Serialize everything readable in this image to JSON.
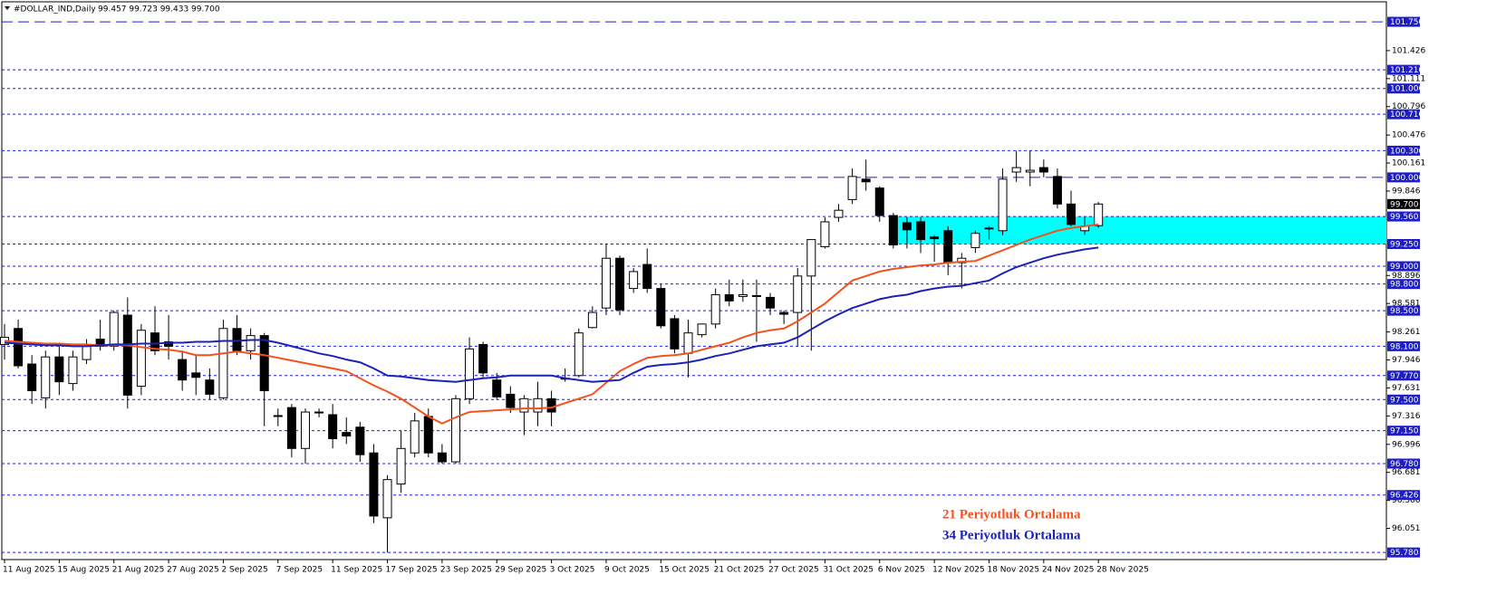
{
  "chart_data": {
    "type": "candlestick",
    "symbol": "#DOLLAR_IND,Daily",
    "ohlc_text": "99.457 99.723 99.433 99.700",
    "categories": [
      "11 Aug 2025",
      null,
      null,
      null,
      "15 Aug 2025",
      null,
      null,
      null,
      "21 Aug 2025",
      null,
      null,
      null,
      "27 Aug 2025",
      null,
      null,
      null,
      "2 Sep 2025",
      null,
      null,
      null,
      "7 Sep 2025",
      null,
      null,
      null,
      "11 Sep 2025",
      null,
      null,
      null,
      "17 Sep 2025",
      null,
      null,
      null,
      "23 Sep 2025",
      null,
      null,
      null,
      "29 Sep 2025",
      null,
      null,
      null,
      "3 Oct 2025",
      null,
      null,
      null,
      "9 Oct 2025",
      null,
      null,
      null,
      "15 Oct 2025",
      null,
      null,
      null,
      "21 Oct 2025",
      null,
      null,
      null,
      "27 Oct 2025",
      null,
      null,
      null,
      "31 Oct 2025",
      null,
      null,
      null,
      "6 Nov 2025",
      null,
      null,
      null,
      "12 Nov 2025",
      null,
      null,
      null,
      "18 Nov 2025",
      null,
      null,
      null,
      "24 Nov 2025",
      null,
      null,
      null,
      "28 Nov 2025"
    ],
    "open": [
      98.12,
      98.3,
      97.9,
      97.52,
      97.98,
      97.68,
      97.95,
      98.18,
      98.1,
      98.45,
      97.65,
      98.25,
      98.15,
      97.95,
      97.8,
      97.72,
      97.52,
      98.3,
      98.05,
      98.22,
      97.32,
      97.41,
      96.95,
      97.36,
      97.33,
      97.13,
      97.19,
      96.9,
      96.17,
      96.55,
      96.9,
      97.31,
      96.9,
      96.8,
      97.51,
      98.12,
      97.72,
      97.56,
      97.36,
      97.36,
      97.51,
      97.74,
      97.77,
      98.31,
      98.53,
      99.09,
      98.75,
      99.02,
      98.75,
      98.41,
      98.02,
      98.23,
      98.35,
      98.68,
      98.66,
      98.67,
      98.65,
      98.48,
      98.48,
      98.89,
      99.22,
      99.55,
      99.75,
      99.98,
      99.88,
      99.57,
      99.49,
      99.5,
      99.33,
      99.4,
      99.04,
      99.21,
      99.43,
      99.4,
      100.06,
      100.06,
      100.11,
      100.01,
      99.7,
      99.4,
      99.457
    ],
    "high": [
      98.35,
      98.4,
      98.0,
      98.05,
      98.1,
      98.05,
      98.18,
      98.4,
      98.5,
      98.65,
      98.35,
      98.55,
      98.45,
      98.05,
      98.0,
      97.85,
      98.4,
      98.45,
      98.3,
      98.25,
      97.4,
      97.45,
      97.4,
      97.4,
      97.45,
      97.3,
      97.25,
      97.0,
      96.65,
      97.15,
      97.35,
      97.4,
      97.0,
      97.55,
      98.2,
      98.15,
      97.8,
      97.65,
      97.55,
      97.7,
      97.6,
      97.85,
      98.3,
      98.55,
      99.25,
      99.12,
      98.98,
      99.2,
      98.8,
      98.45,
      98.4,
      98.35,
      98.75,
      98.85,
      98.85,
      98.85,
      98.7,
      98.5,
      98.98,
      99.3,
      99.55,
      99.7,
      100.1,
      100.2,
      99.9,
      99.6,
      99.55,
      99.55,
      99.35,
      99.45,
      99.15,
      99.4,
      99.45,
      100.1,
      100.3,
      100.3,
      100.2,
      100.1,
      99.85,
      99.55,
      99.723
    ],
    "low": [
      97.95,
      97.85,
      97.45,
      97.4,
      97.55,
      97.6,
      97.9,
      98.05,
      98.05,
      97.4,
      97.55,
      98.0,
      97.95,
      97.6,
      97.55,
      97.5,
      97.5,
      98.0,
      97.95,
      97.2,
      97.2,
      96.85,
      96.78,
      97.3,
      96.95,
      97.0,
      96.8,
      96.11,
      95.78,
      96.45,
      96.85,
      96.85,
      96.78,
      96.78,
      97.45,
      97.75,
      97.5,
      97.35,
      97.1,
      97.2,
      97.2,
      97.7,
      97.75,
      98.3,
      98.45,
      98.45,
      98.7,
      98.7,
      98.3,
      98.02,
      97.75,
      98.2,
      98.3,
      98.55,
      98.6,
      98.15,
      98.45,
      98.35,
      98.1,
      98.05,
      99.2,
      99.5,
      99.7,
      99.85,
      99.5,
      99.2,
      99.2,
      99.15,
      99.05,
      98.9,
      98.75,
      99.15,
      99.3,
      99.35,
      99.95,
      99.9,
      100.0,
      99.65,
      99.45,
      99.35,
      99.433
    ],
    "close": [
      98.2,
      97.88,
      97.6,
      97.98,
      97.7,
      97.98,
      98.1,
      98.1,
      98.48,
      97.55,
      98.28,
      98.05,
      98.1,
      97.72,
      97.75,
      97.56,
      98.3,
      98.05,
      98.22,
      97.6,
      97.31,
      96.95,
      97.36,
      97.35,
      97.06,
      97.09,
      96.88,
      96.19,
      96.6,
      96.95,
      97.26,
      96.9,
      96.8,
      97.51,
      98.07,
      97.8,
      97.53,
      97.41,
      97.51,
      97.51,
      97.36,
      97.74,
      98.25,
      98.48,
      99.09,
      98.51,
      98.94,
      98.75,
      98.33,
      98.07,
      98.25,
      98.35,
      98.68,
      98.61,
      98.68,
      98.66,
      98.53,
      98.46,
      98.89,
      99.3,
      99.5,
      99.63,
      100.01,
      99.95,
      99.57,
      99.24,
      99.41,
      99.3,
      99.31,
      99.04,
      99.09,
      99.37,
      99.43,
      99.98,
      100.11,
      100.08,
      100.06,
      99.7,
      99.47,
      99.45,
      99.7
    ],
    "up_color": "#ffffff",
    "down_color": "#000000",
    "series": [
      {
        "name": "21 Periyotluk Ortalama",
        "color": "#f4511e",
        "values": [
          98.16,
          98.15,
          98.14,
          98.13,
          98.13,
          98.12,
          98.12,
          98.11,
          98.11,
          98.11,
          98.09,
          98.07,
          98.06,
          98.04,
          98.0,
          98.0,
          98.02,
          98.04,
          98.02,
          98.0,
          97.97,
          97.94,
          97.91,
          97.88,
          97.85,
          97.82,
          97.74,
          97.66,
          97.59,
          97.51,
          97.41,
          97.31,
          97.23,
          97.3,
          97.36,
          97.37,
          97.38,
          97.39,
          97.4,
          97.4,
          97.41,
          97.46,
          97.51,
          97.56,
          97.69,
          97.82,
          97.9,
          97.97,
          97.99,
          98.0,
          98.02,
          98.06,
          98.1,
          98.14,
          98.2,
          98.25,
          98.28,
          98.3,
          98.38,
          98.48,
          98.58,
          98.71,
          98.84,
          98.89,
          98.94,
          98.97,
          98.99,
          99.01,
          99.02,
          99.04,
          99.05,
          99.06,
          99.12,
          99.18,
          99.24,
          99.3,
          99.35,
          99.4,
          99.43,
          99.45,
          99.47
        ]
      },
      {
        "name": "34 Periyotluk Ortalama",
        "color": "#1a23b4",
        "values": [
          98.14,
          98.13,
          98.12,
          98.11,
          98.11,
          98.1,
          98.1,
          98.11,
          98.12,
          98.12,
          98.13,
          98.13,
          98.14,
          98.14,
          98.15,
          98.15,
          98.16,
          98.16,
          98.17,
          98.17,
          98.14,
          98.1,
          98.06,
          98.02,
          97.99,
          97.95,
          97.92,
          97.85,
          97.77,
          97.76,
          97.74,
          97.72,
          97.71,
          97.7,
          97.72,
          97.74,
          97.75,
          97.77,
          97.77,
          97.77,
          97.77,
          97.74,
          97.72,
          97.7,
          97.71,
          97.72,
          97.8,
          97.87,
          97.89,
          97.9,
          97.92,
          97.95,
          97.99,
          98.02,
          98.06,
          98.1,
          98.12,
          98.14,
          98.2,
          98.29,
          98.38,
          98.46,
          98.53,
          98.58,
          98.63,
          98.66,
          98.68,
          98.72,
          98.75,
          98.77,
          98.78,
          98.81,
          98.84,
          98.92,
          98.99,
          99.04,
          99.09,
          99.13,
          99.16,
          99.19,
          99.21
        ]
      }
    ],
    "ylim": [
      95.7,
      101.975
    ],
    "yticks": [
      101.426,
      101.111,
      100.796,
      100.476,
      100.161,
      99.846,
      98.896,
      98.581,
      98.261,
      97.946,
      97.631,
      97.316,
      96.996,
      96.681,
      96.366,
      96.051
    ],
    "level_color": "#1e1ec8",
    "levels": [
      {
        "value": 101.75,
        "label": "101.750",
        "style": "dashed"
      },
      {
        "value": 101.21,
        "label": "101.210",
        "style": "dotted"
      },
      {
        "value": 101.0,
        "label": "101.000",
        "style": "dotted"
      },
      {
        "value": 100.71,
        "label": "100.710",
        "style": "dotted"
      },
      {
        "value": 100.3,
        "label": "100.300",
        "style": "dotted"
      },
      {
        "value": 100.0,
        "label": "100.000",
        "style": "dashed"
      },
      {
        "value": 99.56,
        "label": "99.560",
        "style": "dotted"
      },
      {
        "value": 99.25,
        "label": "99.250",
        "style": "dotted"
      },
      {
        "value": 99.0,
        "label": "99.000",
        "style": "dotted"
      },
      {
        "value": 98.8,
        "label": "98.800",
        "style": "dotted"
      },
      {
        "value": 98.5,
        "label": "98.500",
        "style": "dotted"
      },
      {
        "value": 98.1,
        "label": "98.100",
        "style": "dotted"
      },
      {
        "value": 97.77,
        "label": "97.770",
        "style": "dotted"
      },
      {
        "value": 97.5,
        "label": "97.500",
        "style": "dotted"
      },
      {
        "value": 97.15,
        "label": "97.150",
        "style": "dotted"
      },
      {
        "value": 96.78,
        "label": "96.780",
        "style": "dotted"
      },
      {
        "value": 96.426,
        "style": "dotted"
      },
      {
        "value": 95.78,
        "label": "95.780",
        "style": "dotted"
      }
    ],
    "zone": [
      99.25,
      99.56
    ],
    "zone_color": "#00ffff",
    "current_price": {
      "value": 99.7,
      "label": "99.700"
    }
  }
}
